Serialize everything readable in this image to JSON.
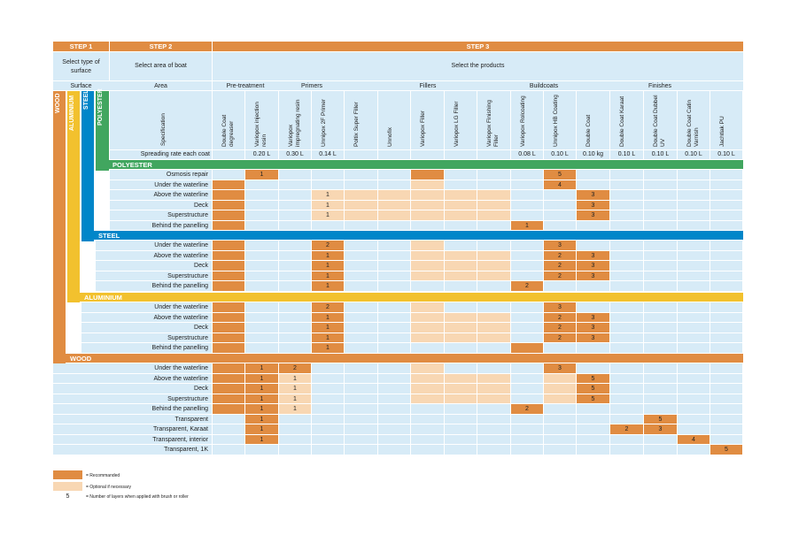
{
  "colors": {
    "orange": "#e08c42",
    "peach": "#f8d7b3",
    "light": "#d7ebf7",
    "green": "#41a65f",
    "blue": "#0086c9",
    "yellow": "#f2c12e"
  },
  "steps": {
    "s1": "STEP 1",
    "s2": "STEP 2",
    "s3": "STEP 3"
  },
  "sub": {
    "c1": "Select type of surface",
    "c2": "Select area of boat",
    "c3": "Select the products"
  },
  "row3": {
    "surface": "Surface",
    "area": "Area",
    "pre": "Pre-treatment",
    "primers": "Primers",
    "fillers": "Fillers",
    "buildcoats": "Buildcoats",
    "finishes": "Finishes"
  },
  "vlabels": {
    "wood": "WOOD",
    "aluminium": "ALUMINIUM",
    "steel": "STEEL",
    "polyester": "POLYESTER"
  },
  "specification": "Specification",
  "spreading_label": "Spreading rate each coat",
  "products": [
    "Double Coat degreaser",
    "Variopox injection resin",
    "Variopox impregnating resin",
    "Unnipox 2F Primer",
    "Poltix Super Filler",
    "Unnofix",
    "Variopox Filler",
    "Variopox LG Filler",
    "Variopox Finishing Filler",
    "Variopox Rolcoating",
    "Unnipox HB Coating",
    "Double Coat",
    "Double Coat Karaat",
    "Double Coat Dubbel UV",
    "Double Coat Catin Varnish",
    "Jachtlak PU"
  ],
  "spreading": [
    "",
    "0.20 L",
    "0.30 L",
    "0.14 L",
    "",
    "",
    "",
    "",
    "",
    "0.08 L",
    "0.10 L",
    "0.10 kg",
    "0.10 L",
    "0.10 L",
    "0.10 L",
    "0.10 L"
  ],
  "sections": [
    {
      "title": "POLYESTER",
      "rows": [
        {
          "area": "Osmosis repair",
          "cells": [
            "",
            "O:1",
            "",
            "",
            "",
            "",
            "O",
            "",
            "",
            "",
            "O:5",
            "",
            "",
            "",
            "",
            ""
          ]
        },
        {
          "area": "Under the waterline",
          "cells": [
            "O",
            "",
            "",
            "",
            "",
            "",
            "P",
            "",
            "",
            "",
            "O:4",
            "",
            "",
            "",
            "",
            ""
          ]
        },
        {
          "area": "Above the waterline",
          "cells": [
            "O",
            "",
            "",
            "P:1",
            "P",
            "P",
            "P",
            "P",
            "P",
            "",
            "",
            "O:3",
            "",
            "",
            "",
            ""
          ]
        },
        {
          "area": "Deck",
          "cells": [
            "O",
            "",
            "",
            "P:1",
            "P",
            "P",
            "P",
            "P",
            "P",
            "",
            "",
            "O:3",
            "",
            "",
            "",
            ""
          ]
        },
        {
          "area": "Superstructure",
          "cells": [
            "O",
            "",
            "",
            "P:1",
            "P",
            "P",
            "P",
            "P",
            "P",
            "",
            "",
            "O:3",
            "",
            "",
            "",
            ""
          ]
        },
        {
          "area": "Behind the panelling",
          "cells": [
            "O",
            "",
            "",
            "",
            "",
            "",
            "",
            "",
            "",
            "O:1",
            "",
            "",
            "",
            "",
            "",
            ""
          ]
        }
      ]
    },
    {
      "title": "STEEL",
      "rows": [
        {
          "area": "Under the waterline",
          "cells": [
            "O",
            "",
            "",
            "O:2",
            "",
            "",
            "P",
            "",
            "",
            "",
            "O:3",
            "",
            "",
            "",
            "",
            ""
          ]
        },
        {
          "area": "Above the waterline",
          "cells": [
            "O",
            "",
            "",
            "O:1",
            "",
            "",
            "P",
            "P",
            "P",
            "",
            "O:2",
            "O:3",
            "",
            "",
            "",
            ""
          ]
        },
        {
          "area": "Deck",
          "cells": [
            "O",
            "",
            "",
            "O:1",
            "",
            "",
            "P",
            "P",
            "P",
            "",
            "O:2",
            "O:3",
            "",
            "",
            "",
            ""
          ]
        },
        {
          "area": "Superstructure",
          "cells": [
            "O",
            "",
            "",
            "O:1",
            "",
            "",
            "P",
            "P",
            "P",
            "",
            "O:2",
            "O:3",
            "",
            "",
            "",
            ""
          ]
        },
        {
          "area": "Behind the panelling",
          "cells": [
            "O",
            "",
            "",
            "O:1",
            "",
            "",
            "",
            "",
            "",
            "O:2",
            "",
            "",
            "",
            "",
            "",
            ""
          ]
        }
      ]
    },
    {
      "title": "ALUMINIUM",
      "rows": [
        {
          "area": "Under the waterline",
          "cells": [
            "O",
            "",
            "",
            "O:2",
            "",
            "",
            "P",
            "",
            "",
            "",
            "O:3",
            "",
            "",
            "",
            "",
            ""
          ]
        },
        {
          "area": "Above the waterline",
          "cells": [
            "O",
            "",
            "",
            "O:1",
            "",
            "",
            "P",
            "P",
            "P",
            "",
            "O:2",
            "O:3",
            "",
            "",
            "",
            ""
          ]
        },
        {
          "area": "Deck",
          "cells": [
            "O",
            "",
            "",
            "O:1",
            "",
            "",
            "P",
            "P",
            "P",
            "",
            "O:2",
            "O:3",
            "",
            "",
            "",
            ""
          ]
        },
        {
          "area": "Superstructure",
          "cells": [
            "O",
            "",
            "",
            "O:1",
            "",
            "",
            "P",
            "P",
            "P",
            "",
            "O:2",
            "O:3",
            "",
            "",
            "",
            ""
          ]
        },
        {
          "area": "Behind the panelling",
          "cells": [
            "O",
            "",
            "",
            "O:1",
            "",
            "",
            "",
            "",
            "",
            "O",
            "",
            "",
            "",
            "",
            "",
            ""
          ]
        }
      ]
    },
    {
      "title": "WOOD",
      "rows": [
        {
          "area": "Under the waterline",
          "cells": [
            "O",
            "O:1",
            "O:2",
            "",
            "",
            "",
            "P",
            "",
            "",
            "",
            "O:3",
            "",
            "",
            "",
            "",
            ""
          ]
        },
        {
          "area": "Above the waterline",
          "cells": [
            "O",
            "O:1",
            "P:1",
            "",
            "",
            "",
            "P",
            "P",
            "P",
            "",
            "P",
            "O:5",
            "",
            "",
            "",
            ""
          ]
        },
        {
          "area": "Deck",
          "cells": [
            "O",
            "O:1",
            "P:1",
            "",
            "",
            "",
            "P",
            "P",
            "P",
            "",
            "P",
            "O:5",
            "",
            "",
            "",
            ""
          ]
        },
        {
          "area": "Superstructure",
          "cells": [
            "O",
            "O:1",
            "P:1",
            "",
            "",
            "",
            "P",
            "P",
            "P",
            "",
            "P",
            "O:5",
            "",
            "",
            "",
            ""
          ]
        },
        {
          "area": "Behind the panelling",
          "cells": [
            "O",
            "O:1",
            "P:1",
            "",
            "",
            "",
            "",
            "",
            "",
            "O:2",
            "",
            "",
            "",
            "",
            "",
            ""
          ]
        },
        {
          "area": "Transparent",
          "cells": [
            "",
            "O:1",
            "",
            "",
            "",
            "",
            "",
            "",
            "",
            "",
            "",
            "",
            "",
            "O:5",
            "",
            ""
          ]
        },
        {
          "area": "Transparent, Karaat",
          "cells": [
            "",
            "O:1",
            "",
            "",
            "",
            "",
            "",
            "",
            "",
            "",
            "",
            "",
            "O:2",
            "O:3",
            "",
            ""
          ]
        },
        {
          "area": "Transparent, interior",
          "cells": [
            "",
            "O:1",
            "",
            "",
            "",
            "",
            "",
            "",
            "",
            "",
            "",
            "",
            "",
            "",
            "O:4",
            ""
          ]
        },
        {
          "area": "Transparent, 1K",
          "cells": [
            "",
            "",
            "",
            "",
            "",
            "",
            "",
            "",
            "",
            "",
            "",
            "",
            "",
            "",
            "",
            "O:5"
          ]
        }
      ]
    }
  ],
  "legend": {
    "rec": "= Recommanded",
    "opt": "= Optional if necessary",
    "num": "5",
    "numtxt": "= Number of layers when applied with brush or roller"
  }
}
